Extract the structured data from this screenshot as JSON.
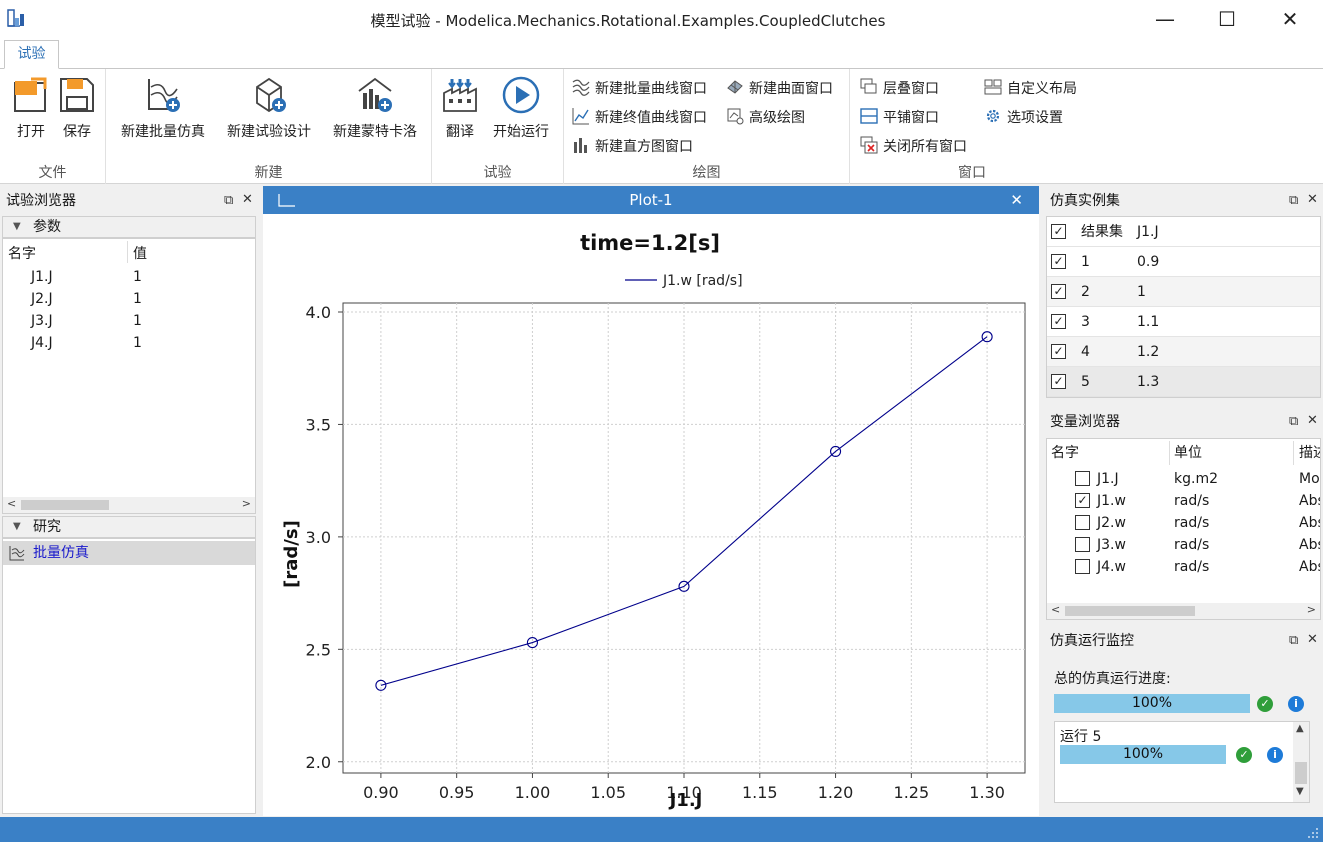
{
  "window": {
    "title": "模型试验 - Modelica.Mechanics.Rotational.Examples.CoupledClutches",
    "minimize": "—",
    "maximize": "☐",
    "close": "✕"
  },
  "ribbon": {
    "tab": "试验",
    "groups": {
      "file": "文件",
      "new": "新建",
      "experiment": "试验",
      "plot": "绘图",
      "window": "窗口"
    },
    "buttons": {
      "open": "打开",
      "save": "保存",
      "new_batch_sim": "新建批量仿真",
      "new_doe": "新建试验设计",
      "new_monte_carlo": "新建蒙特卡洛",
      "translate": "翻译",
      "start_run": "开始运行",
      "new_batch_curve": "新建批量曲线窗口",
      "new_surface": "新建曲面窗口",
      "new_final_curve": "新建终值曲线窗口",
      "advanced_plot": "高级绘图",
      "new_histogram": "新建直方图窗口",
      "cascade": "层叠窗口",
      "custom_layout": "自定义布局",
      "tile": "平铺窗口",
      "options": "选项设置",
      "close_all": "关闭所有窗口"
    }
  },
  "left_panel": {
    "title": "试验浏览器",
    "params_section": "参数",
    "columns": {
      "name": "名字",
      "value": "值"
    },
    "params": [
      {
        "name": "J1.J",
        "value": "1"
      },
      {
        "name": "J2.J",
        "value": "1"
      },
      {
        "name": "J3.J",
        "value": "1"
      },
      {
        "name": "J4.J",
        "value": "1"
      }
    ],
    "study_section": "研究",
    "study_item": "批量仿真"
  },
  "plot": {
    "window_title": "Plot-1",
    "close": "✕",
    "accent": "#3a80c6",
    "series_color": "#00008b"
  },
  "chart_data": {
    "type": "line",
    "title": "time=1.2[s]",
    "xlabel": "J1.J",
    "ylabel": "[rad/s]",
    "legend": "top-center",
    "grid": true,
    "markers": "circle",
    "xlim": [
      0.875,
      1.325
    ],
    "ylim": [
      1.95,
      4.04
    ],
    "xticks": [
      "0.90",
      "0.95",
      "1.00",
      "1.05",
      "1.10",
      "1.15",
      "1.20",
      "1.25",
      "1.30"
    ],
    "yticks": [
      "2.0",
      "2.5",
      "3.0",
      "3.5",
      "4.0"
    ],
    "series": [
      {
        "name": "J1.w [rad/s]",
        "x": [
          0.9,
          1.0,
          1.1,
          1.2,
          1.3
        ],
        "y": [
          2.34,
          2.53,
          2.78,
          3.38,
          3.89
        ]
      }
    ]
  },
  "sim_instances": {
    "title": "仿真实例集",
    "columns": {
      "result": "结果集",
      "var": "J1.J"
    },
    "rows": [
      {
        "id": "1",
        "value": "0.9"
      },
      {
        "id": "2",
        "value": "1"
      },
      {
        "id": "3",
        "value": "1.1"
      },
      {
        "id": "4",
        "value": "1.2"
      },
      {
        "id": "5",
        "value": "1.3"
      }
    ]
  },
  "var_browser": {
    "title": "变量浏览器",
    "columns": {
      "name": "名字",
      "unit": "单位",
      "desc": "描述"
    },
    "rows": [
      {
        "name": "J1.J",
        "unit": "kg.m2",
        "desc": "Mo",
        "checked": false
      },
      {
        "name": "J1.w",
        "unit": "rad/s",
        "desc": "Abs",
        "checked": true
      },
      {
        "name": "J2.w",
        "unit": "rad/s",
        "desc": "Abs",
        "checked": false
      },
      {
        "name": "J3.w",
        "unit": "rad/s",
        "desc": "Abs",
        "checked": false
      },
      {
        "name": "J4.w",
        "unit": "rad/s",
        "desc": "Abs",
        "checked": false
      }
    ]
  },
  "monitor": {
    "title": "仿真运行监控",
    "total_label": "总的仿真运行进度:",
    "total_progress": "100%",
    "run_label": "运行 5",
    "run_progress": "100%",
    "ok": "✓",
    "info": "i"
  }
}
